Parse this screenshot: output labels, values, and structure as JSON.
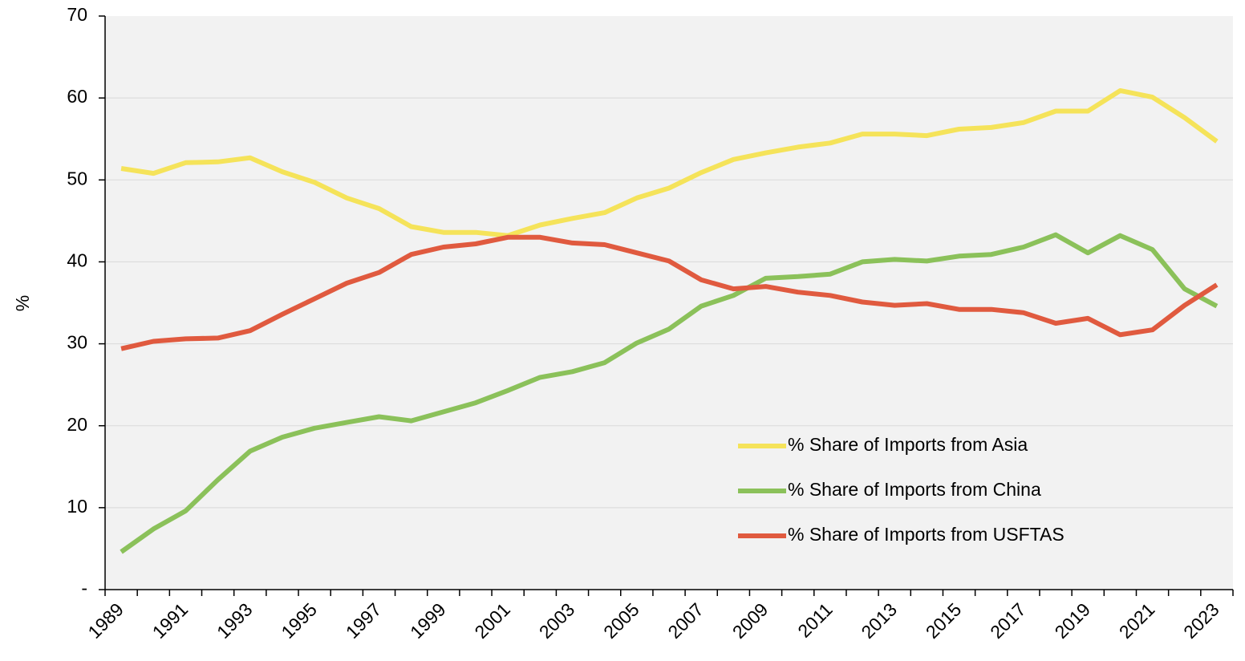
{
  "chart_data": {
    "type": "line",
    "ylabel": "%",
    "categories": [
      "1989",
      null,
      "1991",
      null,
      "1993",
      null,
      "1995",
      null,
      "1997",
      null,
      "1999",
      null,
      "2001",
      null,
      "2003",
      null,
      "2005",
      null,
      "2007",
      null,
      "2009",
      null,
      "2011",
      null,
      "2013",
      null,
      "2015",
      null,
      "2017",
      null,
      "2019",
      null,
      "2021",
      null,
      "2023"
    ],
    "series": [
      {
        "name": "% Share of Imports from Asia",
        "color": "#f5e35a",
        "values": [
          51.4,
          50.8,
          52.1,
          52.2,
          52.7,
          51.0,
          49.7,
          47.8,
          46.5,
          44.3,
          43.6,
          43.6,
          43.2,
          44.5,
          45.3,
          46.0,
          47.8,
          49.0,
          50.9,
          52.5,
          53.3,
          54.0,
          54.5,
          55.6,
          55.6,
          55.4,
          56.2,
          56.4,
          57.0,
          58.4,
          58.4,
          60.9,
          60.1,
          57.6,
          54.7
        ]
      },
      {
        "name": "% Share of Imports from China",
        "color": "#8bc15a",
        "values": [
          4.6,
          7.4,
          9.6,
          13.4,
          16.9,
          18.6,
          19.7,
          20.4,
          21.1,
          20.6,
          21.7,
          22.8,
          24.3,
          25.9,
          26.6,
          27.7,
          30.1,
          31.8,
          34.6,
          35.9,
          38.0,
          38.2,
          38.5,
          40.0,
          40.3,
          40.1,
          40.7,
          40.9,
          41.8,
          43.3,
          41.1,
          43.2,
          41.5,
          36.7,
          34.6
        ]
      },
      {
        "name": "% Share of Imports from USFTAS",
        "color": "#e05a3f",
        "values": [
          29.4,
          30.3,
          30.6,
          30.7,
          31.6,
          33.6,
          35.5,
          37.4,
          38.7,
          40.9,
          41.8,
          42.2,
          43.0,
          43.0,
          42.3,
          42.1,
          41.1,
          40.1,
          37.8,
          36.7,
          37.0,
          36.3,
          35.9,
          35.1,
          34.7,
          34.9,
          34.2,
          34.2,
          33.8,
          32.5,
          33.1,
          31.1,
          31.7,
          34.7,
          37.2
        ]
      }
    ],
    "ylim": [
      0,
      70
    ],
    "yticks": [
      {
        "value": 0,
        "label": "-"
      },
      10,
      20,
      30,
      40,
      50,
      60,
      70
    ],
    "grid": true,
    "legend": "lower right"
  }
}
